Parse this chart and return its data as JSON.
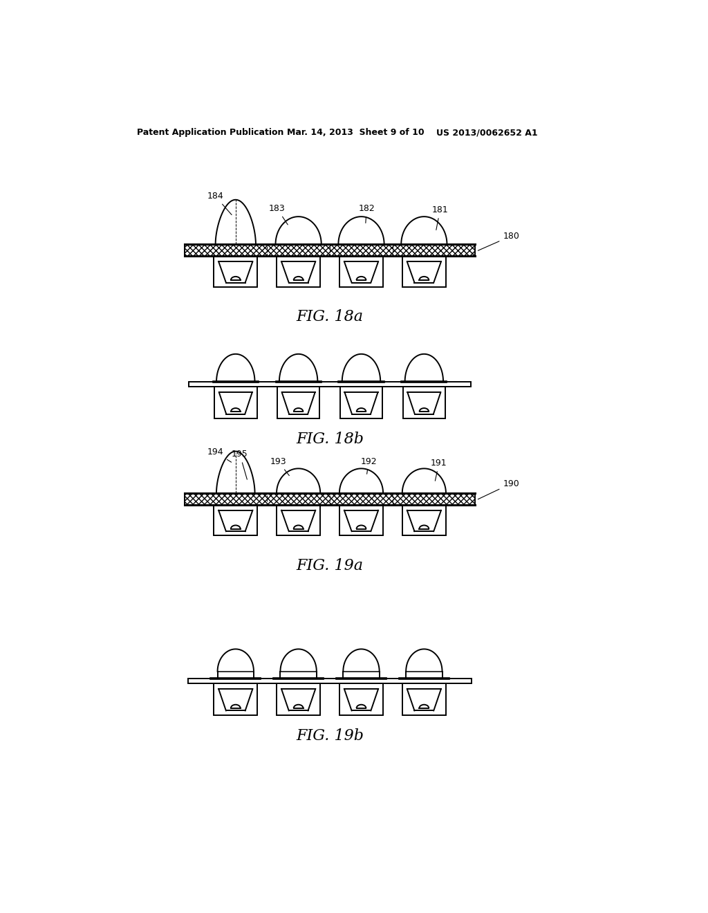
{
  "header_left": "Patent Application Publication",
  "header_mid": "Mar. 14, 2013  Sheet 9 of 10",
  "header_right": "US 2013/0062652 A1",
  "fig18a_label": "FIG. 18a",
  "fig18b_label": "FIG. 18b",
  "fig19a_label": "FIG. 19a",
  "fig19b_label": "FIG. 19b",
  "bg_color": "#ffffff",
  "line_color": "#000000"
}
